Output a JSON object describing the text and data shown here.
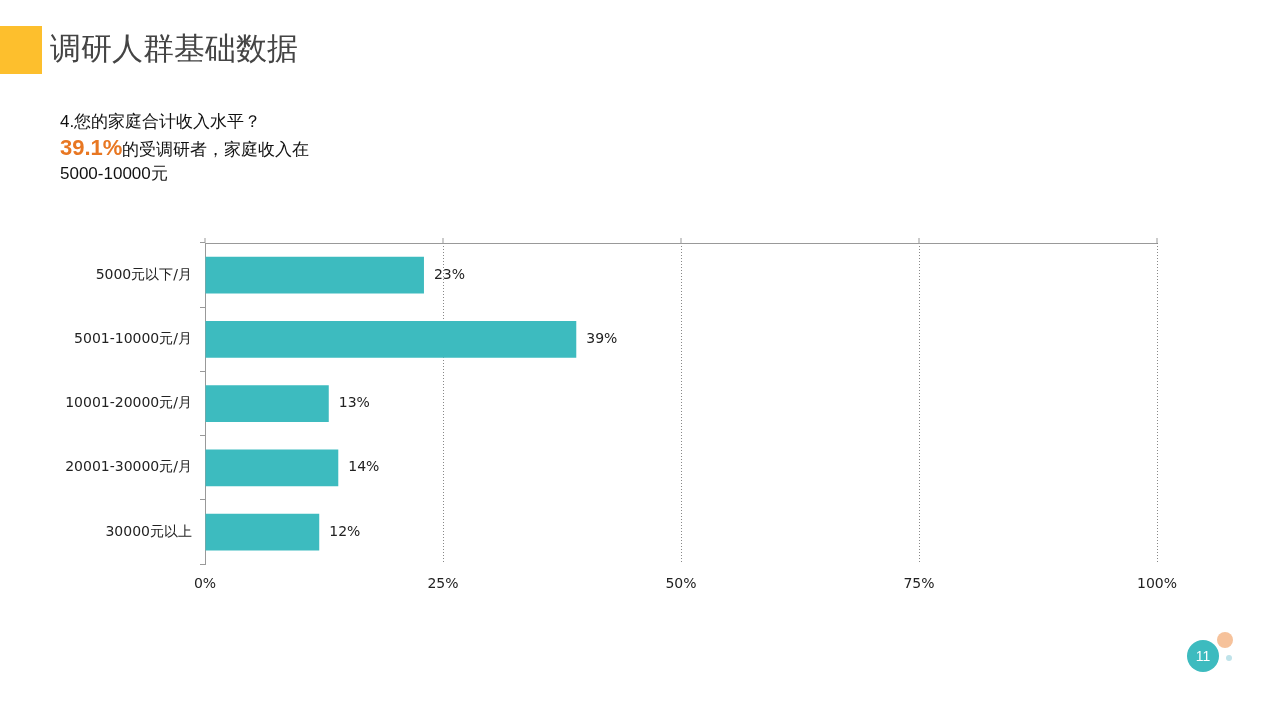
{
  "chart_data": {
    "type": "bar",
    "orientation": "horizontal",
    "title": "调研人群基础数据",
    "subtitle": "4.您的家庭合计收入水平？",
    "annotations": [
      "39.1%",
      "的受调研者，家庭收入在5000-10000元",
      "11"
    ],
    "categories": [
      "5000元以下/月",
      "5001-10000元/月",
      "10001-20000元/月",
      "20001-30000元/月",
      "30000元以上"
    ],
    "values": [
      23,
      39,
      13,
      14,
      12
    ],
    "value_labels": [
      "23%",
      "39%",
      "13%",
      "14%",
      "12%"
    ],
    "color": "#3dbbbf",
    "xlim": [
      0,
      100
    ],
    "xticks": [
      {
        "value": 0,
        "label": "0%"
      },
      {
        "value": 25,
        "label": "25%"
      },
      {
        "value": 50,
        "label": "50%"
      },
      {
        "value": 75,
        "label": "75%"
      },
      {
        "value": 100,
        "label": "100%"
      }
    ],
    "grid": "x",
    "legend": false
  }
}
